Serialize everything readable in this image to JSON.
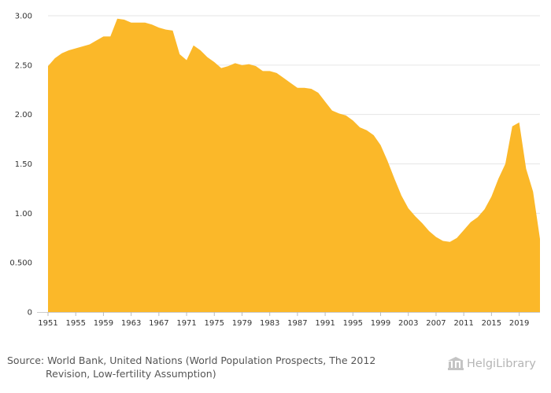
{
  "chart_data": {
    "type": "area",
    "color": "#fbb829",
    "x": [
      1951,
      1952,
      1953,
      1954,
      1955,
      1956,
      1957,
      1958,
      1959,
      1960,
      1961,
      1962,
      1963,
      1964,
      1965,
      1966,
      1967,
      1968,
      1969,
      1970,
      1971,
      1972,
      1973,
      1974,
      1975,
      1976,
      1977,
      1978,
      1979,
      1980,
      1981,
      1982,
      1983,
      1984,
      1985,
      1986,
      1987,
      1988,
      1989,
      1990,
      1991,
      1992,
      1993,
      1994,
      1995,
      1996,
      1997,
      1998,
      1999,
      2000,
      2001,
      2002,
      2003,
      2004,
      2005,
      2006,
      2007,
      2008,
      2009,
      2010,
      2011,
      2012,
      2013,
      2014,
      2015,
      2016,
      2017,
      2018,
      2019,
      2020,
      2021,
      2022
    ],
    "values": [
      2.49,
      2.57,
      2.62,
      2.65,
      2.67,
      2.69,
      2.71,
      2.75,
      2.79,
      2.79,
      2.97,
      2.96,
      2.93,
      2.93,
      2.93,
      2.91,
      2.88,
      2.86,
      2.85,
      2.61,
      2.55,
      2.7,
      2.65,
      2.58,
      2.53,
      2.47,
      2.49,
      2.52,
      2.5,
      2.51,
      2.49,
      2.44,
      2.44,
      2.42,
      2.37,
      2.32,
      2.27,
      2.27,
      2.26,
      2.22,
      2.13,
      2.04,
      2.01,
      1.99,
      1.94,
      1.87,
      1.84,
      1.79,
      1.69,
      1.53,
      1.35,
      1.18,
      1.05,
      0.97,
      0.9,
      0.82,
      0.76,
      0.72,
      0.71,
      0.75,
      0.83,
      0.91,
      0.96,
      1.04,
      1.17,
      1.35,
      1.5,
      1.88,
      1.92,
      1.45,
      1.22,
      0.74
    ],
    "xticks": [
      "1951",
      "1955",
      "1959",
      "1963",
      "1967",
      "1971",
      "1975",
      "1979",
      "1983",
      "1987",
      "1991",
      "1995",
      "1999",
      "2003",
      "2007",
      "2011",
      "2015",
      "2019"
    ],
    "yticks": [
      "0",
      "0.500",
      "1.00",
      "1.50",
      "2.00",
      "2.50",
      "3.00"
    ],
    "ylim": [
      0,
      3.0
    ],
    "xlim": [
      1951,
      2022
    ],
    "grid": "horizontal",
    "title": "",
    "xlabel": "",
    "ylabel": ""
  },
  "footer": {
    "source_line1": "Source: World Bank, United Nations (World Population Prospects, The 2012",
    "source_line2": "Revision, Low-fertility Assumption)",
    "brand": "HelgiLibrary"
  }
}
